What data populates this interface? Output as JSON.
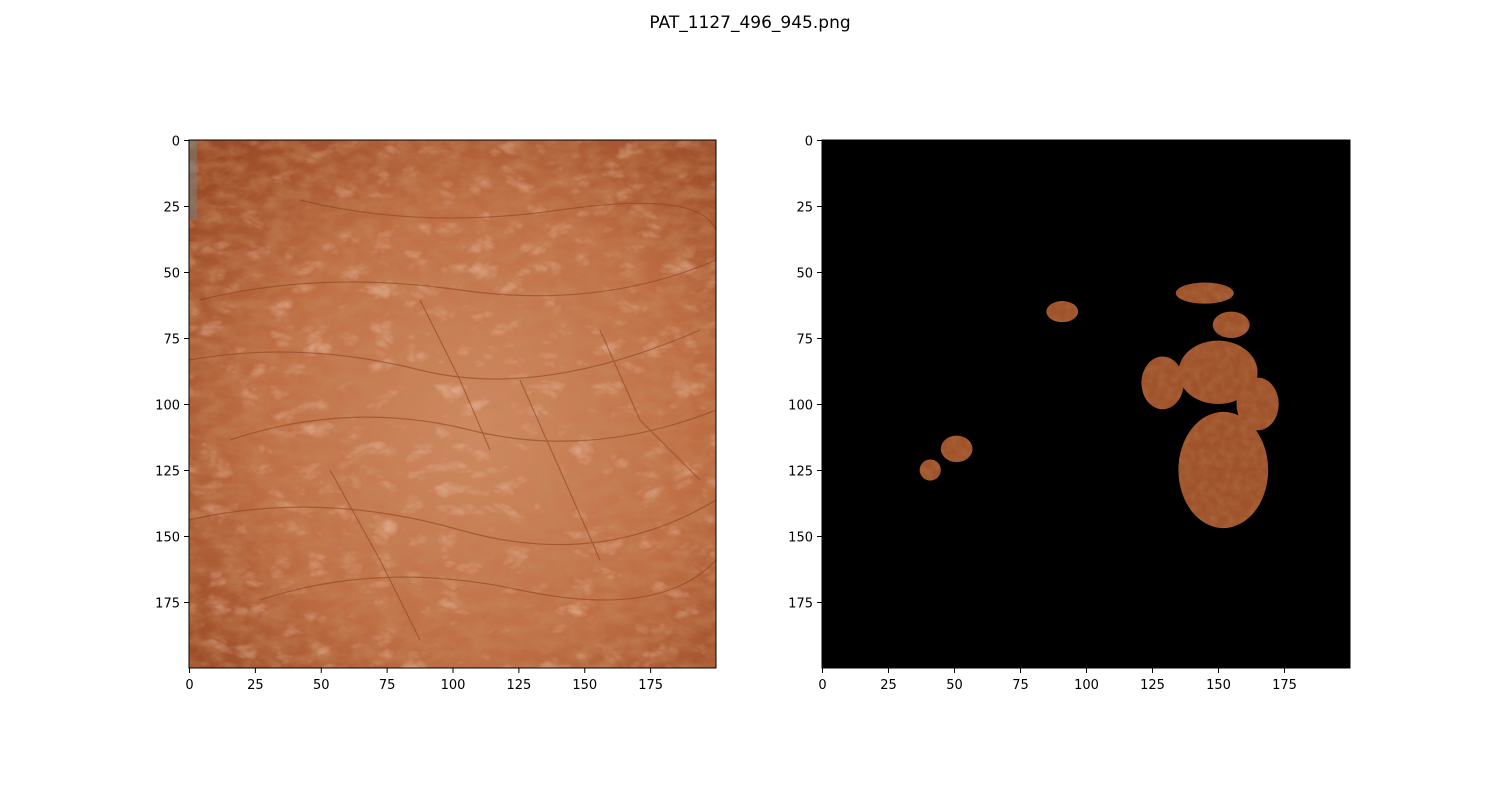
{
  "figure": {
    "title": "PAT_1127_496_945.png",
    "colors": {
      "background": "#ffffff",
      "skin_base": "#b8643a",
      "skin_highlight": "#d4875e",
      "skin_shadow": "#8a3f1c",
      "mask_background": "#000000",
      "lesion": "#a0532b"
    }
  },
  "panels": [
    {
      "name": "original-image",
      "content": "dermatology photo of wrinkled skin",
      "xlim": [
        0,
        200
      ],
      "ylim": [
        0,
        200
      ],
      "x_ticks": [
        0,
        25,
        50,
        75,
        100,
        125,
        150,
        175
      ],
      "y_ticks": [
        0,
        25,
        50,
        75,
        100,
        125,
        150,
        175
      ]
    },
    {
      "name": "segmented-image",
      "content": "lesion regions on black background",
      "xlim": [
        0,
        200
      ],
      "ylim": [
        0,
        200
      ],
      "x_ticks": [
        0,
        25,
        50,
        75,
        100,
        125,
        150,
        175
      ],
      "y_ticks": [
        0,
        25,
        50,
        75,
        100,
        125,
        150,
        175
      ],
      "lesions": [
        {
          "shape": "blob",
          "cx": 145,
          "cy": 58,
          "rx": 11,
          "ry": 4
        },
        {
          "shape": "blob",
          "cx": 155,
          "cy": 70,
          "rx": 7,
          "ry": 5
        },
        {
          "shape": "blob",
          "cx": 129,
          "cy": 92,
          "rx": 8,
          "ry": 10
        },
        {
          "shape": "blob",
          "cx": 150,
          "cy": 88,
          "rx": 15,
          "ry": 12
        },
        {
          "shape": "blob",
          "cx": 165,
          "cy": 100,
          "rx": 8,
          "ry": 10
        },
        {
          "shape": "blob",
          "cx": 152,
          "cy": 125,
          "rx": 17,
          "ry": 22
        },
        {
          "shape": "blob",
          "cx": 91,
          "cy": 65,
          "rx": 6,
          "ry": 4
        },
        {
          "shape": "blob",
          "cx": 51,
          "cy": 117,
          "rx": 6,
          "ry": 5
        },
        {
          "shape": "blob",
          "cx": 41,
          "cy": 125,
          "rx": 4,
          "ry": 4
        }
      ]
    }
  ]
}
